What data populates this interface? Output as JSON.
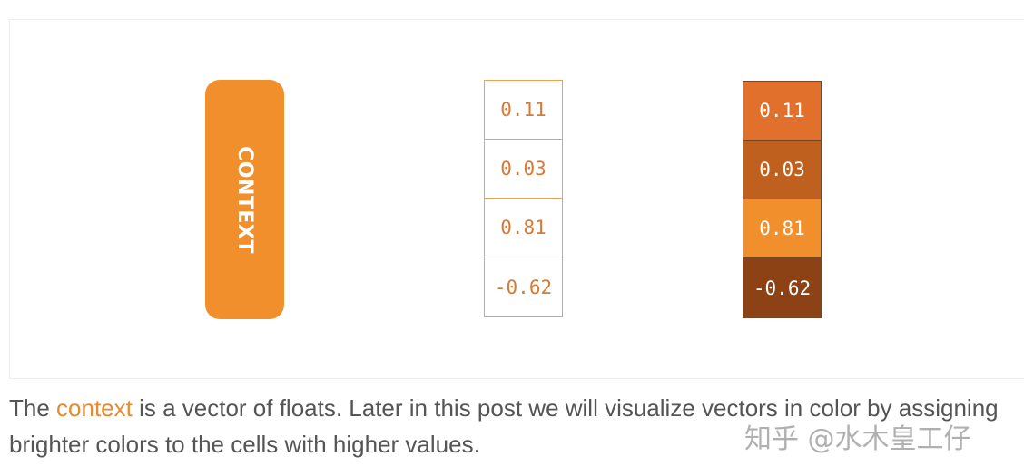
{
  "diagram": {
    "context_label": "CONTEXT",
    "plain_vector": [
      "0.11",
      "0.03",
      "0.81",
      "-0.62"
    ],
    "colored_vector": [
      {
        "value": "0.11",
        "color": "#e0702c"
      },
      {
        "value": "0.03",
        "color": "#c0601f"
      },
      {
        "value": "0.81",
        "color": "#f28f2d"
      },
      {
        "value": "-0.62",
        "color": "#8c4215"
      }
    ]
  },
  "caption": {
    "prefix": "The ",
    "term": "context",
    "rest": " is a vector of floats. Later in this post we will visualize vectors in color by assigning brighter colors to the cells with higher values."
  },
  "watermark": "知乎 @水木皇工仔"
}
